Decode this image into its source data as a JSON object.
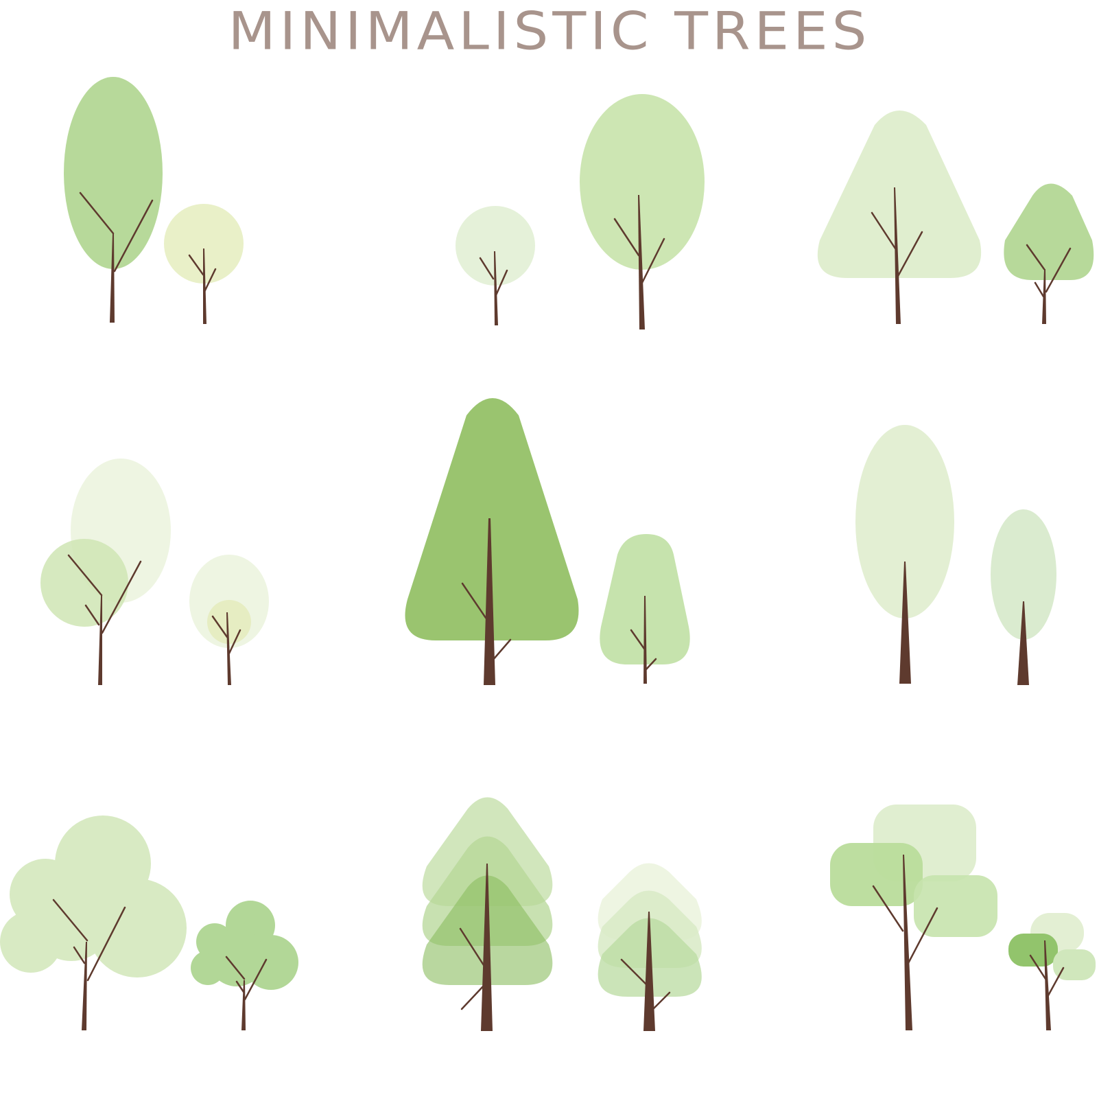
{
  "title": "MINIMALISTIC TREES",
  "colors": {
    "background": "#ffffff",
    "title": "#a8948c",
    "trunk": "#5e3a2e",
    "leaf_dark": "#8ab85f",
    "leaf_mid": "#a9d48a",
    "leaf_light": "#cfe6b8",
    "leaf_pale": "#e6f1d6",
    "leaf_yellow": "#e8efc6"
  }
}
